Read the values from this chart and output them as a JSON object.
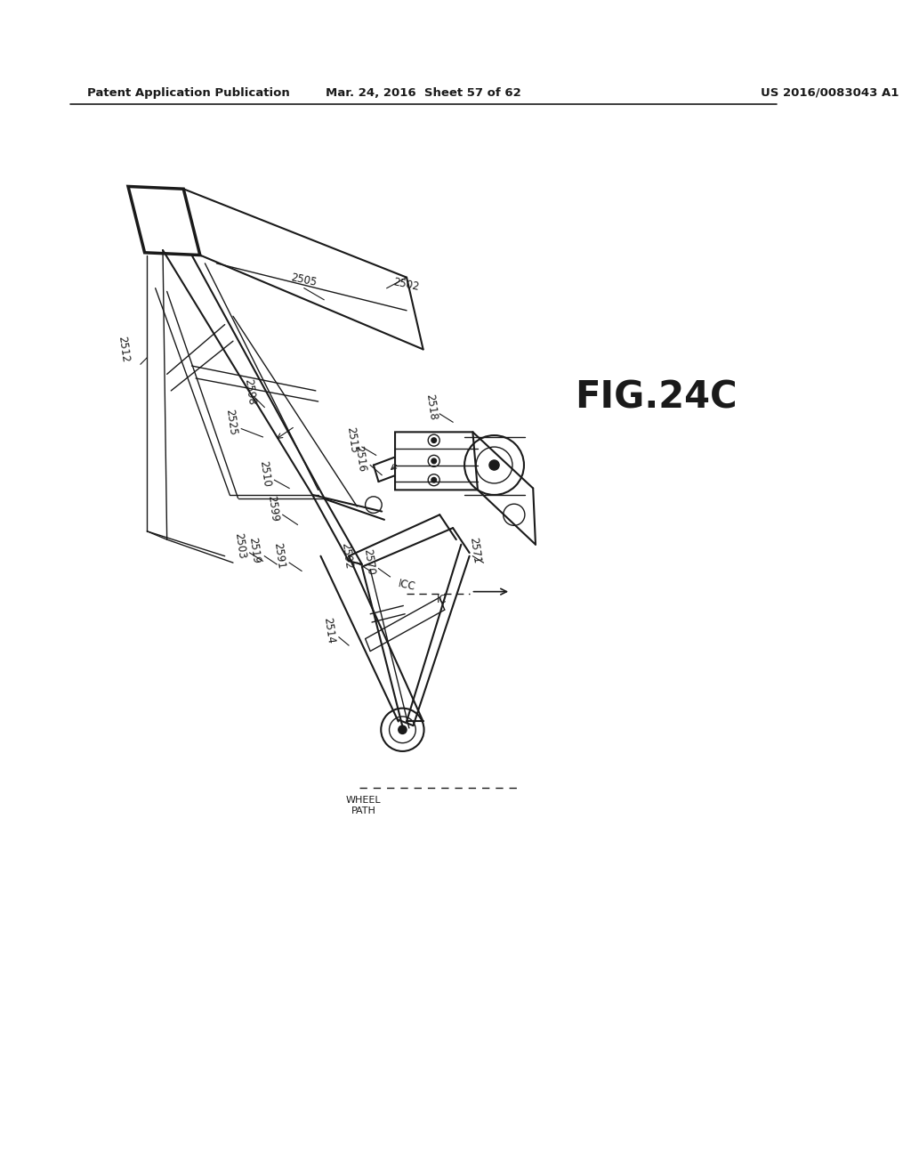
{
  "bg_color": "#ffffff",
  "header_left": "Patent Application Publication",
  "header_mid": "Mar. 24, 2016  Sheet 57 of 62",
  "header_right": "US 2016/0083043 A1",
  "fig_label": "FIG.24C"
}
